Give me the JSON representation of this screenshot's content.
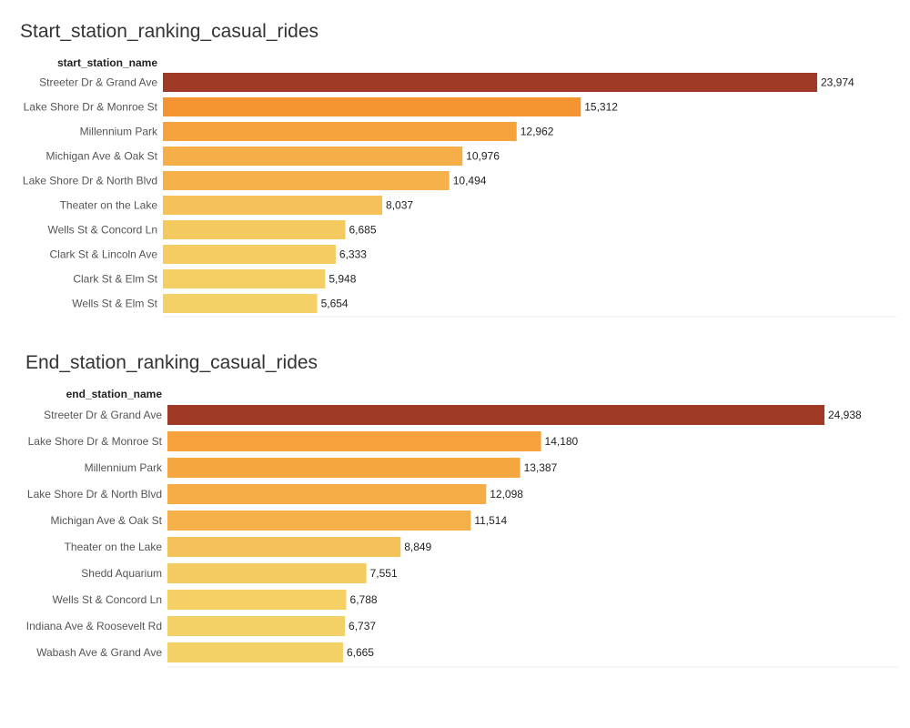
{
  "chart_data": [
    {
      "type": "bar",
      "title": "Start_station_ranking_casual_rides",
      "dimension_label": "start_station_name",
      "categories": [
        "Streeter Dr & Grand Ave",
        "Lake Shore Dr & Monroe St",
        "Millennium Park",
        "Michigan Ave & Oak St",
        "Lake Shore Dr & North Blvd",
        "Theater on the Lake",
        "Wells St & Concord Ln",
        "Clark St & Lincoln Ave",
        "Clark St & Elm St",
        "Wells St & Elm St"
      ],
      "values": [
        23974,
        15312,
        12962,
        10976,
        10494,
        8037,
        6685,
        6333,
        5948,
        5654
      ],
      "value_labels": [
        "23,974",
        "15,312",
        "12,962",
        "10,976",
        "10,494",
        "8,037",
        "6,685",
        "6,333",
        "5,948",
        "5,654"
      ],
      "orientation": "horizontal",
      "color_scale": [
        "#f4d166",
        "#f6b24c",
        "#f69833",
        "#ee7120",
        "#9e3a26"
      ]
    },
    {
      "type": "bar",
      "title": "End_station_ranking_casual_rides",
      "dimension_label": "end_station_name",
      "categories": [
        "Streeter Dr & Grand Ave",
        "Lake Shore Dr & Monroe St",
        "Millennium Park",
        "Lake Shore Dr & North Blvd",
        "Michigan Ave & Oak St",
        "Theater on the Lake",
        "Shedd Aquarium",
        "Wells St & Concord Ln",
        "Indiana Ave & Roosevelt Rd",
        "Wabash Ave & Grand Ave"
      ],
      "values": [
        24938,
        14180,
        13387,
        12098,
        11514,
        8849,
        7551,
        6788,
        6737,
        6665
      ],
      "value_labels": [
        "24,938",
        "14,180",
        "13,387",
        "12,098",
        "11,514",
        "8,849",
        "7,551",
        "6,788",
        "6,737",
        "6,665"
      ],
      "orientation": "horizontal",
      "color_scale": [
        "#f4d166",
        "#f6b24c",
        "#f69833",
        "#ee7120",
        "#9e3a26"
      ]
    }
  ]
}
